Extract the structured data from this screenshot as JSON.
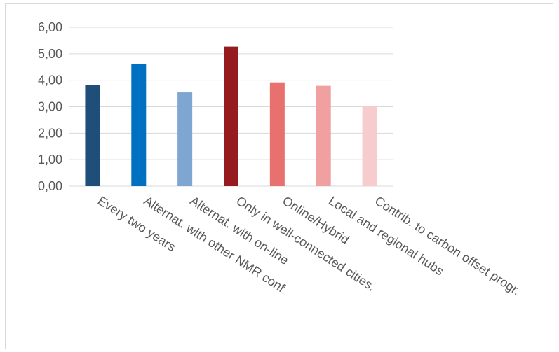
{
  "chart_data": {
    "type": "bar",
    "title": "",
    "xlabel": "",
    "ylabel": "",
    "ylim": [
      0,
      6
    ],
    "yticks": [
      0,
      1,
      2,
      3,
      4,
      5,
      6
    ],
    "ytick_labels": [
      "0,00",
      "1,00",
      "2,00",
      "3,00",
      "4,00",
      "5,00",
      "6,00"
    ],
    "grid": true,
    "legend": "none",
    "categories": [
      "Every two years",
      "Alternat. with other NMR conf.",
      "Alternat. with on-line",
      "Only in well-connected cities.",
      "Online/Hybrid",
      "Local and regional hubs",
      "Contrib. to carbon offset progr."
    ],
    "values": [
      3.82,
      4.62,
      3.54,
      5.27,
      3.92,
      3.79,
      3.02
    ],
    "colors": [
      "#1f4e79",
      "#0070c0",
      "#7ea6d0",
      "#951b1e",
      "#e8706e",
      "#f0a0a0",
      "#f7cccc"
    ],
    "gridline_color": "#d9d9d9"
  }
}
